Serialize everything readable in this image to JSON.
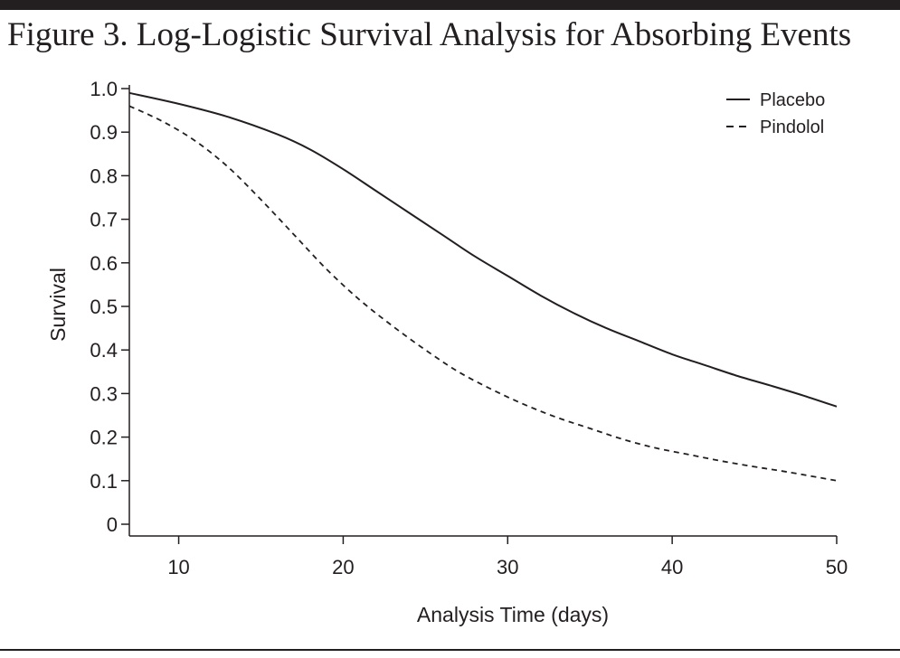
{
  "figure": {
    "title": "Figure 3. Log-Logistic Survival Analysis for Absorbing Events"
  },
  "colors": {
    "ink": "#231f20",
    "background": "#ffffff"
  },
  "chart_data": {
    "type": "line",
    "title": "Figure 3. Log-Logistic Survival Analysis for Absorbing Events",
    "xlabel": "Analysis Time (days)",
    "ylabel": "Survival",
    "xlim": [
      7,
      50
    ],
    "ylim": [
      0,
      1.0
    ],
    "xticks": [
      10,
      20,
      30,
      40,
      50
    ],
    "yticks": [
      0,
      0.1,
      0.2,
      0.3,
      0.4,
      0.5,
      0.6,
      0.7,
      0.8,
      0.9,
      1.0
    ],
    "ytick_labels": [
      "0",
      "0.1",
      "0.2",
      "0.3",
      "0.4",
      "0.5",
      "0.6",
      "0.7",
      "0.8",
      "0.9",
      "1.0"
    ],
    "grid": false,
    "legend_position": "top-right",
    "series": [
      {
        "name": "Placebo",
        "line_style": "solid",
        "color": "#231f20",
        "x": [
          7,
          10,
          13,
          16,
          18,
          20,
          22,
          24,
          26,
          28,
          30,
          32,
          34,
          36,
          38,
          40,
          42,
          44,
          46,
          48,
          50
        ],
        "y": [
          0.99,
          0.965,
          0.935,
          0.895,
          0.86,
          0.815,
          0.765,
          0.715,
          0.665,
          0.615,
          0.57,
          0.525,
          0.485,
          0.45,
          0.42,
          0.39,
          0.365,
          0.34,
          0.318,
          0.295,
          0.27
        ]
      },
      {
        "name": "Pindolol",
        "line_style": "dashed",
        "color": "#231f20",
        "x": [
          7,
          9,
          11,
          13,
          15,
          17,
          19,
          21,
          23,
          25,
          27,
          29,
          31,
          33,
          35,
          37,
          39,
          41,
          43,
          45,
          47,
          50
        ],
        "y": [
          0.96,
          0.925,
          0.88,
          0.82,
          0.745,
          0.665,
          0.585,
          0.515,
          0.455,
          0.4,
          0.35,
          0.31,
          0.275,
          0.245,
          0.22,
          0.195,
          0.175,
          0.16,
          0.145,
          0.132,
          0.12,
          0.1
        ]
      }
    ]
  }
}
